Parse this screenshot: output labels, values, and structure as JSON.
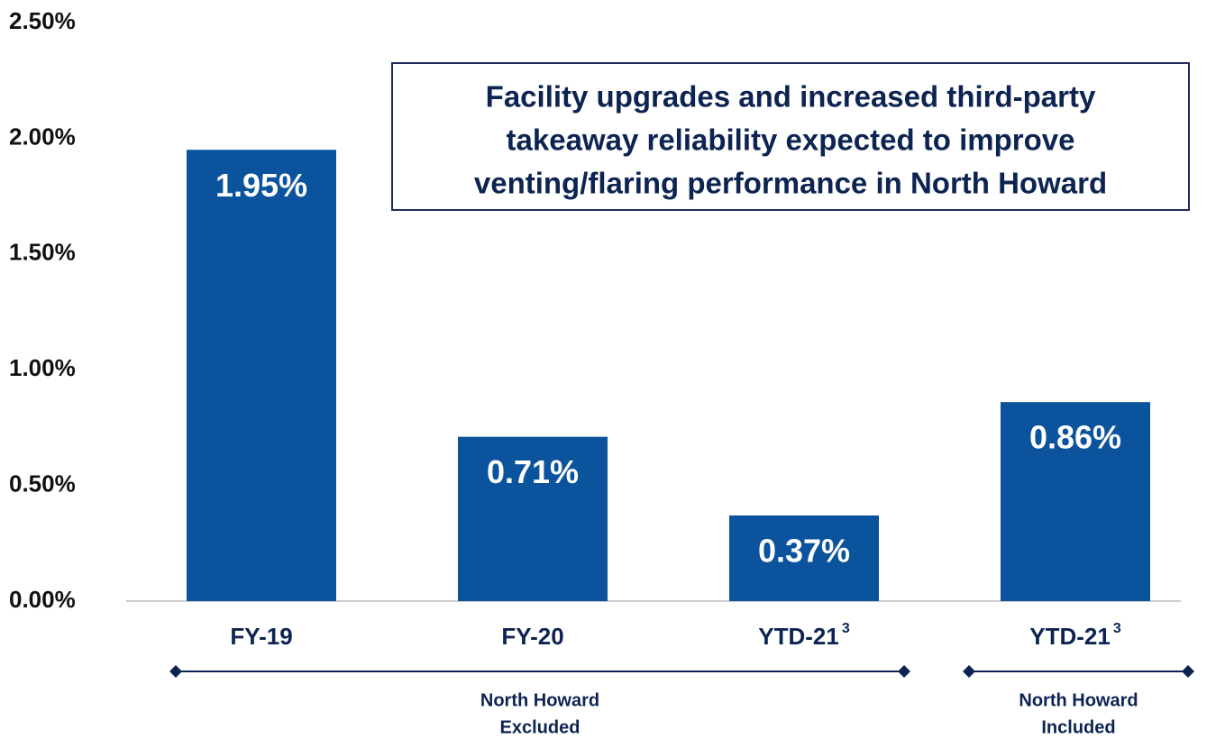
{
  "chart_data": {
    "type": "bar",
    "categories": [
      "FY-19",
      "FY-20",
      "YTD-21",
      "YTD-21"
    ],
    "category_superscripts": [
      null,
      null,
      "3",
      "3"
    ],
    "values": [
      1.95,
      0.71,
      0.37,
      0.86
    ],
    "value_labels": [
      "1.95%",
      "0.71%",
      "0.37%",
      "0.86%"
    ],
    "color": "#0b539c",
    "ylim": [
      0,
      2.5
    ],
    "yticks": [
      {
        "value": 0,
        "label": "0.00%"
      },
      {
        "value": 0.5,
        "label": "0.50%"
      },
      {
        "value": 1,
        "label": "1.00%"
      },
      {
        "value": 1.5,
        "label": "1.50%"
      },
      {
        "value": 2,
        "label": "2.00%"
      },
      {
        "value": 2.5,
        "label": "2.50%"
      }
    ],
    "annotation": [
      "Facility upgrades and increased third-party",
      "takeaway reliability expected to improve",
      "venting/flaring performance in North Howard"
    ],
    "groups": [
      {
        "lines": [
          "North Howard",
          "Excluded"
        ],
        "from": 0,
        "to": 2
      },
      {
        "lines": [
          "North Howard",
          "Included"
        ],
        "from": 3,
        "to": 3
      }
    ]
  }
}
